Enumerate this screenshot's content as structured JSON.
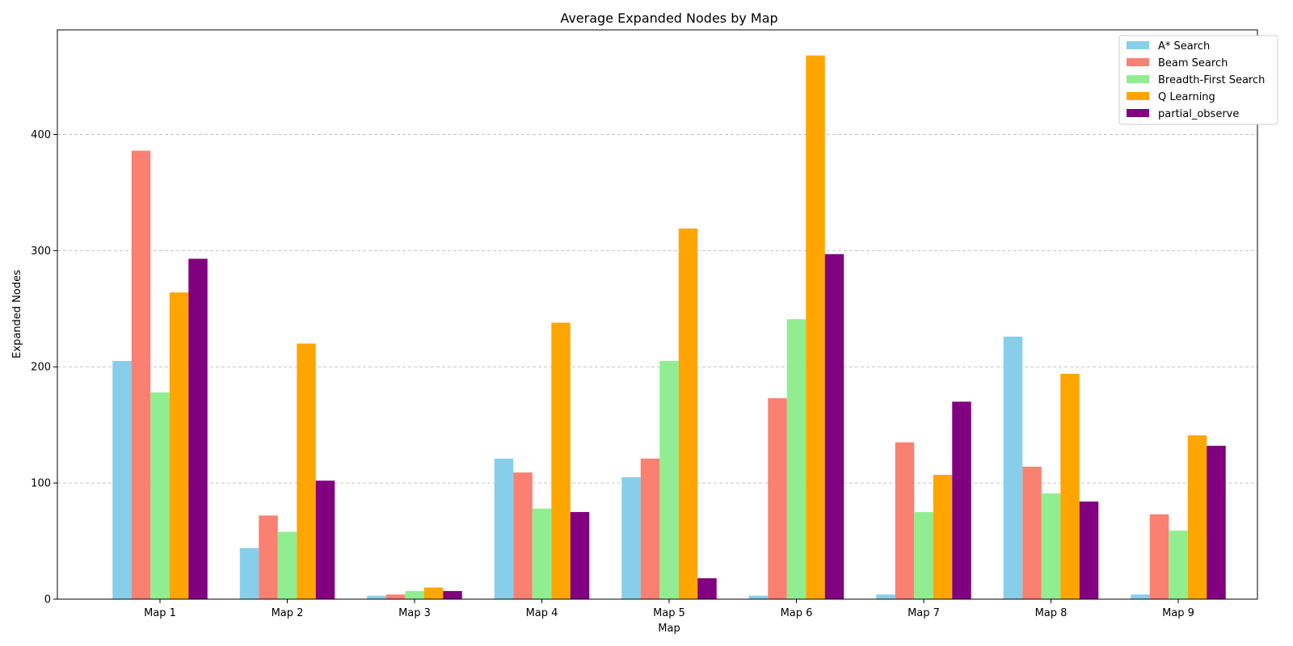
{
  "chart_data": {
    "type": "bar",
    "title": "Average Expanded Nodes by Map",
    "xlabel": "Map",
    "ylabel": "Expanded Nodes",
    "categories": [
      "Map 1",
      "Map 2",
      "Map 3",
      "Map 4",
      "Map 5",
      "Map 6",
      "Map 7",
      "Map 8",
      "Map 9"
    ],
    "ylim": [
      0,
      490
    ],
    "yticks": [
      0,
      100,
      200,
      300,
      400
    ],
    "grid": "horizontal-dashed",
    "legend_position": "top-right",
    "series": [
      {
        "name": "A* Search",
        "color": "#87CEEB",
        "values": [
          205,
          44,
          3,
          121,
          105,
          3,
          4,
          226,
          4
        ]
      },
      {
        "name": "Beam Search",
        "color": "#FA8072",
        "values": [
          386,
          72,
          4,
          109,
          121,
          173,
          135,
          114,
          73
        ]
      },
      {
        "name": "Breadth-First Search",
        "color": "#90EE90",
        "values": [
          178,
          58,
          7,
          78,
          205,
          241,
          75,
          91,
          59
        ]
      },
      {
        "name": "Q Learning",
        "color": "#FFA500",
        "values": [
          264,
          220,
          10,
          238,
          319,
          468,
          107,
          194,
          141
        ]
      },
      {
        "name": "partial_observe",
        "color": "#800080",
        "values": [
          293,
          102,
          7,
          75,
          18,
          297,
          170,
          84,
          132
        ]
      }
    ]
  }
}
